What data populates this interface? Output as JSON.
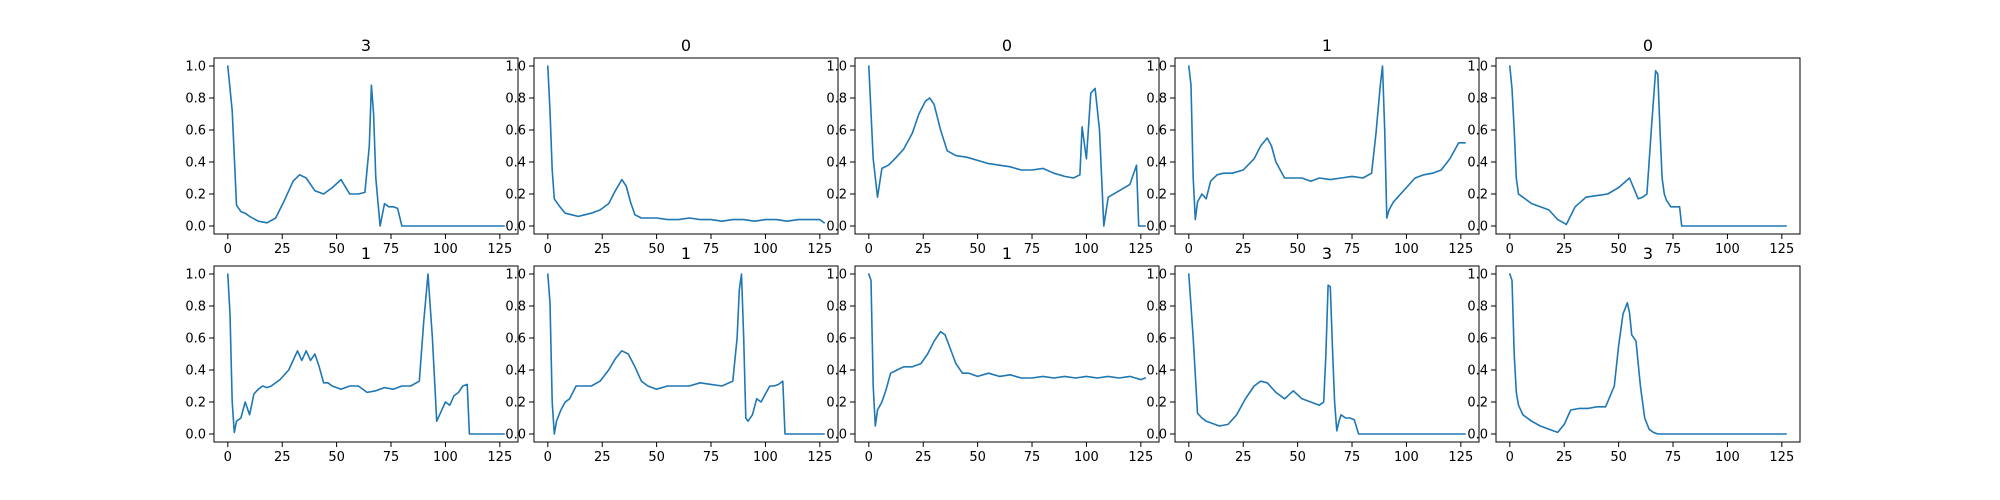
{
  "figure": {
    "line_color": "#1f77b4"
  },
  "chart_data": [
    {
      "type": "line",
      "title": "3",
      "xlim": [
        -6.35,
        133.35
      ],
      "ylim": [
        -0.05,
        1.05
      ],
      "xticks": [
        0,
        25,
        50,
        75,
        100,
        125
      ],
      "yticks": [
        0.0,
        0.2,
        0.4,
        0.6,
        0.8,
        1.0
      ],
      "x": [
        0,
        2,
        4,
        6,
        8,
        10,
        14,
        18,
        22,
        26,
        30,
        33,
        36,
        40,
        44,
        48,
        52,
        56,
        60,
        63,
        65,
        66,
        67,
        68,
        70,
        72,
        74,
        76,
        78,
        80,
        85,
        90,
        100,
        110,
        120,
        127
      ],
      "y": [
        1.0,
        0.72,
        0.13,
        0.09,
        0.08,
        0.06,
        0.03,
        0.02,
        0.05,
        0.16,
        0.28,
        0.32,
        0.3,
        0.22,
        0.2,
        0.24,
        0.29,
        0.2,
        0.2,
        0.21,
        0.5,
        0.88,
        0.7,
        0.3,
        0.0,
        0.14,
        0.12,
        0.12,
        0.11,
        0.0,
        0.0,
        0.0,
        0.0,
        0.0,
        0.0,
        0.0
      ]
    },
    {
      "type": "line",
      "title": "0",
      "xlim": [
        -6.35,
        133.35
      ],
      "ylim": [
        -0.05,
        1.05
      ],
      "xticks": [
        0,
        25,
        50,
        75,
        100,
        125
      ],
      "yticks": [
        0.0,
        0.2,
        0.4,
        0.6,
        0.8,
        1.0
      ],
      "x": [
        0,
        1,
        2,
        3,
        5,
        8,
        11,
        14,
        17,
        20,
        24,
        28,
        31,
        34,
        36,
        38,
        40,
        43,
        46,
        50,
        55,
        60,
        65,
        70,
        75,
        80,
        85,
        90,
        95,
        100,
        105,
        110,
        115,
        120,
        125,
        127
      ],
      "y": [
        1.0,
        0.72,
        0.35,
        0.17,
        0.13,
        0.08,
        0.07,
        0.06,
        0.07,
        0.08,
        0.1,
        0.14,
        0.22,
        0.29,
        0.25,
        0.15,
        0.07,
        0.05,
        0.05,
        0.05,
        0.04,
        0.04,
        0.05,
        0.04,
        0.04,
        0.03,
        0.04,
        0.04,
        0.03,
        0.04,
        0.04,
        0.03,
        0.04,
        0.04,
        0.04,
        0.02
      ]
    },
    {
      "type": "line",
      "title": "0",
      "xlim": [
        -6.35,
        133.35
      ],
      "ylim": [
        -0.05,
        1.05
      ],
      "xticks": [
        0,
        25,
        50,
        75,
        100,
        125
      ],
      "yticks": [
        0.0,
        0.2,
        0.4,
        0.6,
        0.8,
        1.0
      ],
      "x": [
        0,
        2,
        4,
        6,
        9,
        12,
        16,
        20,
        23,
        26,
        28,
        30,
        33,
        36,
        40,
        45,
        50,
        55,
        60,
        65,
        70,
        75,
        80,
        85,
        90,
        94,
        97,
        98,
        100,
        102,
        104,
        106,
        108,
        110,
        115,
        120,
        123,
        124,
        125,
        127
      ],
      "y": [
        1.0,
        0.42,
        0.18,
        0.36,
        0.38,
        0.42,
        0.48,
        0.58,
        0.7,
        0.78,
        0.8,
        0.76,
        0.6,
        0.47,
        0.44,
        0.43,
        0.41,
        0.39,
        0.38,
        0.37,
        0.35,
        0.35,
        0.36,
        0.33,
        0.31,
        0.3,
        0.32,
        0.62,
        0.42,
        0.83,
        0.86,
        0.6,
        0.0,
        0.18,
        0.22,
        0.26,
        0.38,
        0.0,
        0.0,
        0.0
      ]
    },
    {
      "type": "line",
      "title": "1",
      "xlim": [
        -6.35,
        133.35
      ],
      "ylim": [
        -0.05,
        1.05
      ],
      "xticks": [
        0,
        25,
        50,
        75,
        100,
        125
      ],
      "yticks": [
        0.0,
        0.2,
        0.4,
        0.6,
        0.8,
        1.0
      ],
      "x": [
        0,
        1,
        2,
        3,
        4,
        6,
        8,
        10,
        13,
        16,
        20,
        25,
        30,
        33,
        36,
        38,
        40,
        44,
        48,
        52,
        56,
        60,
        65,
        70,
        75,
        80,
        84,
        86,
        88,
        89,
        90,
        91,
        92,
        94,
        96,
        100,
        104,
        108,
        112,
        116,
        120,
        124,
        127
      ],
      "y": [
        1.0,
        0.88,
        0.3,
        0.04,
        0.15,
        0.2,
        0.17,
        0.28,
        0.32,
        0.33,
        0.33,
        0.35,
        0.42,
        0.5,
        0.55,
        0.5,
        0.4,
        0.3,
        0.3,
        0.3,
        0.28,
        0.3,
        0.29,
        0.3,
        0.31,
        0.3,
        0.33,
        0.58,
        0.88,
        1.0,
        0.6,
        0.05,
        0.1,
        0.15,
        0.18,
        0.24,
        0.3,
        0.32,
        0.33,
        0.35,
        0.42,
        0.52,
        0.52
      ]
    },
    {
      "type": "line",
      "title": "0",
      "xlim": [
        -6.35,
        133.35
      ],
      "ylim": [
        -0.05,
        1.05
      ],
      "xticks": [
        0,
        25,
        50,
        75,
        100,
        125
      ],
      "yticks": [
        0.0,
        0.2,
        0.4,
        0.6,
        0.8,
        1.0
      ],
      "x": [
        0,
        1,
        2,
        3,
        4,
        6,
        10,
        14,
        18,
        22,
        26,
        30,
        35,
        40,
        45,
        50,
        55,
        59,
        61,
        63,
        65,
        67,
        68,
        69,
        70,
        71,
        72,
        73,
        74,
        76,
        78,
        79,
        80,
        90,
        100,
        110,
        120,
        127
      ],
      "y": [
        1.0,
        0.86,
        0.6,
        0.3,
        0.2,
        0.18,
        0.14,
        0.12,
        0.1,
        0.04,
        0.01,
        0.12,
        0.18,
        0.19,
        0.2,
        0.24,
        0.3,
        0.17,
        0.18,
        0.2,
        0.6,
        0.97,
        0.95,
        0.6,
        0.3,
        0.2,
        0.16,
        0.14,
        0.12,
        0.12,
        0.12,
        0.0,
        0.0,
        0.0,
        0.0,
        0.0,
        0.0,
        0.0
      ]
    },
    {
      "type": "line",
      "title": "1",
      "xlim": [
        -6.35,
        133.35
      ],
      "ylim": [
        -0.05,
        1.05
      ],
      "xticks": [
        0,
        25,
        50,
        75,
        100,
        125
      ],
      "yticks": [
        0.0,
        0.2,
        0.4,
        0.6,
        0.8,
        1.0
      ],
      "x": [
        0,
        1,
        2,
        3,
        4,
        6,
        8,
        10,
        12,
        14,
        16,
        18,
        20,
        24,
        28,
        32,
        34,
        36,
        38,
        40,
        42,
        44,
        46,
        48,
        52,
        56,
        60,
        64,
        68,
        72,
        76,
        80,
        84,
        88,
        90,
        92,
        94,
        96,
        98,
        100,
        102,
        104,
        106,
        108,
        110,
        111,
        115,
        120,
        127
      ],
      "y": [
        1.0,
        0.75,
        0.2,
        0.01,
        0.08,
        0.1,
        0.2,
        0.12,
        0.25,
        0.28,
        0.3,
        0.29,
        0.3,
        0.34,
        0.4,
        0.52,
        0.46,
        0.52,
        0.46,
        0.5,
        0.42,
        0.32,
        0.32,
        0.3,
        0.28,
        0.3,
        0.3,
        0.26,
        0.27,
        0.29,
        0.28,
        0.3,
        0.3,
        0.33,
        0.7,
        1.0,
        0.6,
        0.08,
        0.14,
        0.2,
        0.18,
        0.24,
        0.26,
        0.3,
        0.31,
        0.0,
        0.0,
        0.0,
        0.0
      ]
    },
    {
      "type": "line",
      "title": "1",
      "xlim": [
        -6.35,
        133.35
      ],
      "ylim": [
        -0.05,
        1.05
      ],
      "xticks": [
        0,
        25,
        50,
        75,
        100,
        125
      ],
      "yticks": [
        0.0,
        0.2,
        0.4,
        0.6,
        0.8,
        1.0
      ],
      "x": [
        0,
        1,
        2,
        3,
        4,
        6,
        8,
        10,
        13,
        16,
        20,
        24,
        28,
        31,
        34,
        37,
        40,
        43,
        46,
        50,
        55,
        60,
        65,
        70,
        75,
        80,
        85,
        87,
        88,
        89,
        90,
        91,
        92,
        94,
        96,
        98,
        100,
        102,
        104,
        106,
        108,
        109,
        115,
        120,
        127
      ],
      "y": [
        1.0,
        0.82,
        0.2,
        0.0,
        0.08,
        0.15,
        0.2,
        0.22,
        0.3,
        0.3,
        0.3,
        0.33,
        0.4,
        0.47,
        0.52,
        0.5,
        0.42,
        0.33,
        0.3,
        0.28,
        0.3,
        0.3,
        0.3,
        0.32,
        0.31,
        0.3,
        0.33,
        0.6,
        0.9,
        1.0,
        0.6,
        0.1,
        0.08,
        0.12,
        0.22,
        0.2,
        0.25,
        0.3,
        0.3,
        0.31,
        0.33,
        0.0,
        0.0,
        0.0,
        0.0
      ]
    },
    {
      "type": "line",
      "title": "1",
      "xlim": [
        -6.35,
        133.35
      ],
      "ylim": [
        -0.05,
        1.05
      ],
      "xticks": [
        0,
        25,
        50,
        75,
        100,
        125
      ],
      "yticks": [
        0.0,
        0.2,
        0.4,
        0.6,
        0.8,
        1.0
      ],
      "x": [
        0,
        1,
        2,
        3,
        4,
        6,
        8,
        10,
        13,
        16,
        20,
        24,
        27,
        30,
        33,
        35,
        37,
        40,
        43,
        46,
        50,
        55,
        60,
        65,
        70,
        75,
        80,
        85,
        90,
        95,
        100,
        105,
        110,
        115,
        120,
        125,
        127
      ],
      "y": [
        1.0,
        0.96,
        0.3,
        0.05,
        0.15,
        0.2,
        0.28,
        0.38,
        0.4,
        0.42,
        0.42,
        0.44,
        0.5,
        0.58,
        0.64,
        0.62,
        0.55,
        0.44,
        0.38,
        0.38,
        0.36,
        0.38,
        0.36,
        0.37,
        0.35,
        0.35,
        0.36,
        0.35,
        0.36,
        0.35,
        0.36,
        0.35,
        0.36,
        0.35,
        0.36,
        0.34,
        0.35
      ]
    },
    {
      "type": "line",
      "title": "3",
      "xlim": [
        -6.35,
        133.35
      ],
      "ylim": [
        -0.05,
        1.05
      ],
      "xticks": [
        0,
        25,
        50,
        75,
        100,
        125
      ],
      "yticks": [
        0.0,
        0.2,
        0.4,
        0.6,
        0.8,
        1.0
      ],
      "x": [
        0,
        2,
        4,
        6,
        8,
        10,
        14,
        18,
        22,
        26,
        30,
        33,
        36,
        40,
        44,
        48,
        52,
        56,
        60,
        62,
        63,
        64,
        65,
        66,
        67,
        68,
        69,
        70,
        72,
        74,
        76,
        78,
        80,
        90,
        100,
        110,
        120,
        127
      ],
      "y": [
        1.0,
        0.6,
        0.13,
        0.1,
        0.08,
        0.07,
        0.05,
        0.06,
        0.12,
        0.22,
        0.3,
        0.33,
        0.32,
        0.26,
        0.22,
        0.27,
        0.22,
        0.2,
        0.18,
        0.2,
        0.5,
        0.93,
        0.92,
        0.55,
        0.2,
        0.02,
        0.08,
        0.12,
        0.1,
        0.1,
        0.09,
        0.0,
        0.0,
        0.0,
        0.0,
        0.0,
        0.0,
        0.0
      ]
    },
    {
      "type": "line",
      "title": "3",
      "xlim": [
        -6.35,
        133.35
      ],
      "ylim": [
        -0.05,
        1.05
      ],
      "xticks": [
        0,
        25,
        50,
        75,
        100,
        125
      ],
      "yticks": [
        0.0,
        0.2,
        0.4,
        0.6,
        0.8,
        1.0
      ],
      "x": [
        0,
        1,
        2,
        3,
        4,
        6,
        10,
        14,
        18,
        22,
        25,
        28,
        32,
        36,
        40,
        44,
        48,
        50,
        52,
        54,
        55,
        56,
        58,
        60,
        62,
        64,
        66,
        68,
        70,
        72,
        75,
        80,
        90,
        100,
        110,
        120,
        127
      ],
      "y": [
        1.0,
        0.96,
        0.5,
        0.26,
        0.18,
        0.12,
        0.08,
        0.05,
        0.03,
        0.01,
        0.06,
        0.15,
        0.16,
        0.16,
        0.17,
        0.17,
        0.3,
        0.55,
        0.75,
        0.82,
        0.76,
        0.62,
        0.58,
        0.3,
        0.1,
        0.03,
        0.01,
        0.0,
        0.0,
        0.0,
        0.0,
        0.0,
        0.0,
        0.0,
        0.0,
        0.0,
        0.0
      ]
    }
  ]
}
